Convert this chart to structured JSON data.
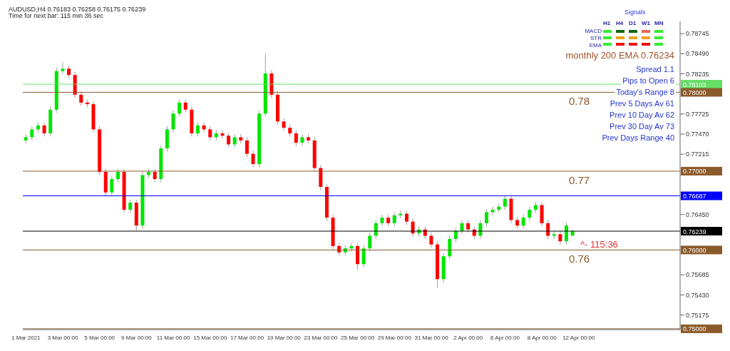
{
  "chart_data": {
    "type": "candlestick",
    "title": "AUDUSD,H4  0.76183 0.76258 0.76175 0.76239",
    "subtitle": "Time for next bar: 115 min 36 sec",
    "categories": [
      "1 Mar 2021",
      null,
      null,
      null,
      null,
      null,
      "3 Mar 00:00",
      null,
      null,
      null,
      null,
      null,
      "5 Mar 00:00",
      null,
      null,
      null,
      null,
      null,
      "9 Mar 00:00",
      null,
      null,
      null,
      null,
      null,
      "11 Mar 00:00",
      null,
      null,
      null,
      null,
      null,
      "15 Mar 00:00",
      null,
      null,
      null,
      null,
      null,
      "17 Mar 00:00",
      null,
      null,
      null,
      null,
      null,
      "19 Mar 00:00",
      null,
      null,
      null,
      null,
      null,
      "23 Mar 00:00",
      null,
      null,
      null,
      null,
      null,
      "25 Mar 00:00",
      null,
      null,
      null,
      null,
      null,
      "29 Mar 00:00",
      null,
      null,
      null,
      null,
      null,
      "31 Mar 00:00",
      null,
      null,
      null,
      null,
      null,
      "2 Apr 00:00",
      null,
      null,
      null,
      null,
      null,
      "6 Apr 00:00",
      null,
      null,
      null,
      null,
      null,
      "8 Apr 00:00",
      null,
      null,
      null,
      null,
      null,
      "12 Apr 00:00",
      null,
      null,
      null,
      null,
      null,
      null,
      null,
      null,
      null,
      null,
      null,
      null,
      null,
      null,
      null,
      null
    ],
    "ohlc": [
      [
        0.7739,
        0.7747,
        0.7735,
        0.7743
      ],
      [
        0.7743,
        0.7757,
        0.7739,
        0.7753
      ],
      [
        0.7753,
        0.7762,
        0.7749,
        0.7758
      ],
      [
        0.7758,
        0.7762,
        0.7744,
        0.7748
      ],
      [
        0.7748,
        0.7782,
        0.7744,
        0.7778
      ],
      [
        0.7778,
        0.7831,
        0.7774,
        0.7827
      ],
      [
        0.7827,
        0.7838,
        0.7823,
        0.783
      ],
      [
        0.783,
        0.7834,
        0.7818,
        0.7822
      ],
      [
        0.7822,
        0.7826,
        0.7793,
        0.7797
      ],
      [
        0.7797,
        0.7801,
        0.7783,
        0.7787
      ],
      [
        0.7787,
        0.7791,
        0.7781,
        0.7785
      ],
      [
        0.7785,
        0.7789,
        0.7749,
        0.7753
      ],
      [
        0.7753,
        0.7757,
        0.7695,
        0.7699
      ],
      [
        0.7699,
        0.7703,
        0.7669,
        0.7673
      ],
      [
        0.7673,
        0.7694,
        0.7669,
        0.769
      ],
      [
        0.769,
        0.7703,
        0.7686,
        0.7699
      ],
      [
        0.7699,
        0.7703,
        0.7647,
        0.7651
      ],
      [
        0.7651,
        0.7664,
        0.7647,
        0.766
      ],
      [
        0.766,
        0.7664,
        0.7624,
        0.7631
      ],
      [
        0.7631,
        0.7699,
        0.7627,
        0.7695
      ],
      [
        0.7695,
        0.7703,
        0.7691,
        0.7699
      ],
      [
        0.7699,
        0.7703,
        0.7686,
        0.769
      ],
      [
        0.769,
        0.7733,
        0.7686,
        0.7729
      ],
      [
        0.7729,
        0.7757,
        0.7725,
        0.7753
      ],
      [
        0.7753,
        0.7777,
        0.7749,
        0.7773
      ],
      [
        0.7773,
        0.7791,
        0.7769,
        0.7787
      ],
      [
        0.7787,
        0.7791,
        0.7774,
        0.7778
      ],
      [
        0.7778,
        0.7782,
        0.7744,
        0.7748
      ],
      [
        0.7748,
        0.7762,
        0.7744,
        0.7758
      ],
      [
        0.7758,
        0.7762,
        0.7749,
        0.7753
      ],
      [
        0.7753,
        0.7757,
        0.7739,
        0.7743
      ],
      [
        0.7743,
        0.7752,
        0.7739,
        0.7748
      ],
      [
        0.7748,
        0.7752,
        0.7741,
        0.7745
      ],
      [
        0.7745,
        0.7749,
        0.773,
        0.7734
      ],
      [
        0.7734,
        0.7747,
        0.773,
        0.7743
      ],
      [
        0.7743,
        0.7747,
        0.7735,
        0.7739
      ],
      [
        0.7739,
        0.7743,
        0.7718,
        0.7722
      ],
      [
        0.7722,
        0.7726,
        0.7705,
        0.7709
      ],
      [
        0.7709,
        0.7777,
        0.7705,
        0.7773
      ],
      [
        0.7773,
        0.7849,
        0.7769,
        0.7824
      ],
      [
        0.7824,
        0.7828,
        0.7793,
        0.7797
      ],
      [
        0.7797,
        0.7801,
        0.7759,
        0.7763
      ],
      [
        0.7763,
        0.7767,
        0.7751,
        0.7755
      ],
      [
        0.7755,
        0.7759,
        0.7744,
        0.7748
      ],
      [
        0.7748,
        0.7752,
        0.7732,
        0.7736
      ],
      [
        0.7736,
        0.7747,
        0.7732,
        0.7743
      ],
      [
        0.7743,
        0.7747,
        0.7735,
        0.7739
      ],
      [
        0.7739,
        0.7743,
        0.77,
        0.7704
      ],
      [
        0.7704,
        0.7708,
        0.7676,
        0.768
      ],
      [
        0.768,
        0.7684,
        0.7637,
        0.7641
      ],
      [
        0.7641,
        0.7645,
        0.7601,
        0.7605
      ],
      [
        0.7605,
        0.7609,
        0.7593,
        0.7597
      ],
      [
        0.7597,
        0.7606,
        0.7593,
        0.7602
      ],
      [
        0.7602,
        0.7609,
        0.7598,
        0.7605
      ],
      [
        0.7605,
        0.7609,
        0.7575,
        0.7582
      ],
      [
        0.7582,
        0.7606,
        0.7578,
        0.7602
      ],
      [
        0.7602,
        0.7622,
        0.7598,
        0.7618
      ],
      [
        0.7618,
        0.7638,
        0.7614,
        0.7634
      ],
      [
        0.7634,
        0.7645,
        0.763,
        0.7641
      ],
      [
        0.7641,
        0.7645,
        0.763,
        0.7634
      ],
      [
        0.7634,
        0.7648,
        0.763,
        0.7644
      ],
      [
        0.7644,
        0.765,
        0.764,
        0.7646
      ],
      [
        0.7646,
        0.765,
        0.7632,
        0.7636
      ],
      [
        0.7636,
        0.764,
        0.7617,
        0.7621
      ],
      [
        0.7621,
        0.763,
        0.7617,
        0.7626
      ],
      [
        0.7626,
        0.763,
        0.7614,
        0.7618
      ],
      [
        0.7618,
        0.7622,
        0.7603,
        0.7607
      ],
      [
        0.7607,
        0.7611,
        0.7552,
        0.7563
      ],
      [
        0.7563,
        0.7596,
        0.7559,
        0.7592
      ],
      [
        0.7592,
        0.7618,
        0.7588,
        0.7614
      ],
      [
        0.7614,
        0.7628,
        0.761,
        0.7624
      ],
      [
        0.7624,
        0.7638,
        0.762,
        0.7634
      ],
      [
        0.7634,
        0.7638,
        0.7622,
        0.7626
      ],
      [
        0.7626,
        0.763,
        0.7614,
        0.7618
      ],
      [
        0.7618,
        0.7638,
        0.7614,
        0.7634
      ],
      [
        0.7634,
        0.7652,
        0.763,
        0.7648
      ],
      [
        0.7648,
        0.7655,
        0.7644,
        0.7651
      ],
      [
        0.7651,
        0.7659,
        0.7647,
        0.7655
      ],
      [
        0.7655,
        0.7669,
        0.7651,
        0.7665
      ],
      [
        0.7665,
        0.7669,
        0.7634,
        0.7638
      ],
      [
        0.7638,
        0.7642,
        0.7627,
        0.7631
      ],
      [
        0.7631,
        0.7645,
        0.7627,
        0.7641
      ],
      [
        0.7641,
        0.7655,
        0.7637,
        0.7651
      ],
      [
        0.7651,
        0.7661,
        0.7647,
        0.7657
      ],
      [
        0.7657,
        0.7661,
        0.763,
        0.7634
      ],
      [
        0.7634,
        0.7638,
        0.7614,
        0.7618
      ],
      [
        0.7618,
        0.7624,
        0.7614,
        0.762
      ],
      [
        0.762,
        0.7624,
        0.7607,
        0.7611
      ],
      [
        0.7611,
        0.7635,
        0.7607,
        0.7631
      ],
      [
        0.76183,
        0.76258,
        0.76175,
        0.76239
      ],
      null,
      null,
      null,
      null,
      null,
      null,
      null,
      null,
      null,
      null,
      null,
      null,
      null,
      null,
      null,
      null,
      null
    ],
    "colors": [
      "#00e600",
      "#00e600",
      "#00e600",
      "#ff0000",
      "#00e600",
      "#00e600",
      "#00e600",
      "#ff0000",
      "#ff0000",
      "#ff0000",
      "#ff0000",
      "#ff0000",
      "#ff0000",
      "#ff0000",
      "#00e600",
      "#00e600",
      "#ff0000",
      "#00e600",
      "#ff0000",
      "#00e600",
      "#00e600",
      "#ff0000",
      "#00e600",
      "#00e600",
      "#00e600",
      "#00e600",
      "#ff0000",
      "#ff0000",
      "#00e600",
      "#ff0000",
      "#ff0000",
      "#00e600",
      "#ff0000",
      "#ff0000",
      "#00e600",
      "#ff0000",
      "#ff0000",
      "#ff0000",
      "#00e600",
      "#00e600",
      "#ff0000",
      "#ff0000",
      "#ff0000",
      "#ff0000",
      "#ff0000",
      "#00e600",
      "#ff0000",
      "#ff0000",
      "#ff0000",
      "#ff0000",
      "#ff0000",
      "#ff0000",
      "#00e600",
      "#00e600",
      "#ff0000",
      "#00e600",
      "#00e600",
      "#00e600",
      "#00e600",
      "#ff0000",
      "#00e600",
      "#00e600",
      "#ff0000",
      "#ff0000",
      "#00e600",
      "#ff0000",
      "#ff0000",
      "#ff0000",
      "#00e600",
      "#00e600",
      "#00e600",
      "#00e600",
      "#ff0000",
      "#ff0000",
      "#00e600",
      "#00e600",
      "#00e600",
      "#00e600",
      "#00e600",
      "#ff0000",
      "#ff0000",
      "#00e600",
      "#00e600",
      "#00e600",
      "#ff0000",
      "#ff0000",
      "#00e600",
      "#ff0000",
      "#00e600",
      "#00e600",
      null,
      null,
      null,
      null,
      null,
      null,
      null,
      null,
      null,
      null,
      null,
      null,
      null,
      null,
      null,
      null,
      null
    ],
    "ylim": [
      0.7499,
      0.789
    ],
    "yticks": [
      0.78745,
      {
        "value": 0.7849,
        "label": "0.78490"
      },
      0.78235,
      0.77725,
      {
        "value": 0.7747,
        "label": "0.77470"
      },
      0.77215,
      {
        "value": 0.7645,
        "label": "0.76450"
      },
      0.75685,
      {
        "value": 0.7543,
        "label": "0.75430"
      },
      0.75175
    ],
    "ref_lines": [
      {
        "axis": "y",
        "value": 0.78103,
        "label": "0.78103",
        "color": "#66dd66"
      },
      {
        "axis": "y",
        "value": 0.78,
        "label": "0.78000",
        "color": "#8b5a2b"
      },
      {
        "axis": "y",
        "value": 0.77,
        "label": "0.77000",
        "color": "#8b5a2b"
      },
      {
        "axis": "y",
        "value": 0.76687,
        "label": "0.76687",
        "color": "#0000ff"
      },
      {
        "axis": "y",
        "value": 0.76239,
        "label": "0.76239",
        "color": "#000000"
      },
      {
        "axis": "y",
        "value": 0.76,
        "label": "0.76000",
        "color": "#8b5a2b"
      },
      {
        "axis": "y",
        "value": 0.75,
        "label": "0.75000",
        "color": "#8b5a2b"
      }
    ],
    "annotations": [
      "Signals",
      "H1",
      "H4",
      "D1",
      "W1",
      "MN",
      "MACD",
      "STR",
      "EMA",
      "monthly 200 EMA 0.76234",
      "Spread 1.1",
      "Pips to Open 6",
      "Today's Range 8",
      "Prev 5 Days Av 61",
      "Prev 10 Day Av 62",
      "Prev 30 Day Av 73",
      "Prev Days Range 40",
      {
        "text": "0.78",
        "y": 0.78
      },
      {
        "text": "0.77",
        "y": 0.77
      },
      {
        "text": "0.76",
        "y": 0.76
      },
      "^- 115:36"
    ],
    "legend": false
  }
}
